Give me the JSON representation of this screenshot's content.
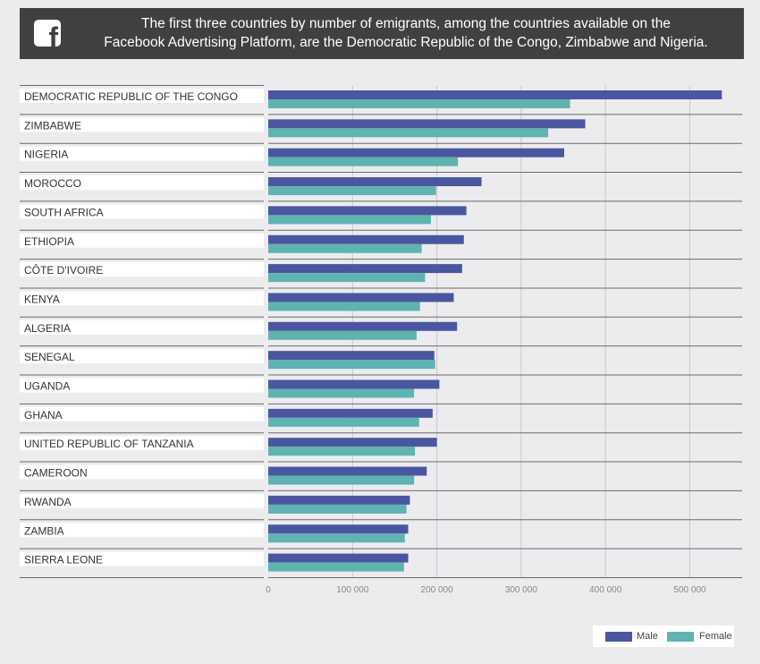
{
  "banner": {
    "icon": "facebook-icon",
    "logo_letter": "f",
    "text": "The first three countries by number of emigrants, among the countries available on the\nFacebook Advertising Platform, are the Democratic Republic of the Congo, Zimbabwe and Nigeria."
  },
  "colors": {
    "male": "#4a57a0",
    "female": "#5fb3b0",
    "grid": "#c9c9cc",
    "separator": "#6a6a6d"
  },
  "chart_data": {
    "type": "bar",
    "orientation": "horizontal",
    "categories": [
      "DEMOCRATIC REPUBLIC OF THE CONGO",
      "ZIMBABWE",
      "NIGERIA",
      "MOROCCO",
      "SOUTH AFRICA",
      "ETHIOPIA",
      "CÔTE D'IVOIRE",
      "KENYA",
      "ALGERIA",
      "SENEGAL",
      "UGANDA",
      "GHANA",
      "UNITED REPUBLIC OF TANZANIA",
      "CAMEROON",
      "RWANDA",
      "ZAMBIA",
      "SIERRA LEONE"
    ],
    "series": [
      {
        "name": "Male",
        "values": [
          538000,
          376000,
          351000,
          253000,
          235000,
          232000,
          230000,
          220000,
          224000,
          197000,
          203000,
          195000,
          200000,
          188000,
          168000,
          166000,
          166000
        ]
      },
      {
        "name": "Female",
        "values": [
          358000,
          332000,
          225000,
          199000,
          193000,
          182000,
          186000,
          180000,
          176000,
          198000,
          173000,
          179000,
          174000,
          173000,
          164000,
          162000,
          161000
        ]
      }
    ],
    "x_ticks": [
      0,
      100000,
      200000,
      300000,
      400000,
      500000
    ],
    "x_tick_labels": [
      "0",
      "100 000",
      "200 000",
      "300 000",
      "400 000",
      "500 000"
    ],
    "xlim": [
      0,
      560000
    ],
    "grid": true,
    "legend_position": "bottom-right"
  }
}
